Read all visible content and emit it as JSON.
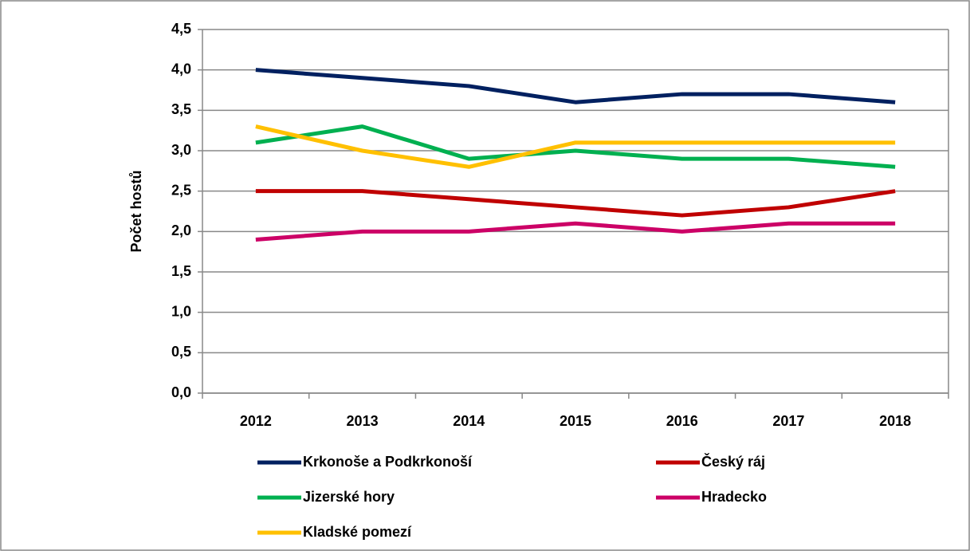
{
  "chart_data": {
    "type": "line",
    "y_label": "Počet hostů",
    "categories": [
      "2012",
      "2013",
      "2014",
      "2015",
      "2016",
      "2017",
      "2018"
    ],
    "series": [
      {
        "name": "Krkonoše a Podkrkonoší",
        "color": "#002060",
        "values": [
          4.0,
          3.9,
          3.8,
          3.6,
          3.7,
          3.7,
          3.6
        ]
      },
      {
        "name": "Český ráj",
        "color": "#c00000",
        "values": [
          2.5,
          2.5,
          2.4,
          2.3,
          2.2,
          2.3,
          2.5
        ]
      },
      {
        "name": "Jizerské hory",
        "color": "#00b050",
        "values": [
          3.1,
          3.3,
          2.9,
          3.0,
          2.9,
          2.9,
          2.8
        ]
      },
      {
        "name": "Hradecko",
        "color": "#cc0066",
        "values": [
          1.9,
          2.0,
          2.0,
          2.1,
          2.0,
          2.1,
          2.1
        ]
      },
      {
        "name": "Kladské pomezí",
        "color": "#ffc000",
        "values": [
          3.3,
          3.0,
          2.8,
          3.1,
          3.1,
          3.1,
          3.1
        ]
      }
    ],
    "ylim": [
      0,
      4.5
    ],
    "yticks": [
      {
        "value": 0,
        "label": "0,0"
      },
      {
        "value": 0.5,
        "label": "0,5"
      },
      {
        "value": 1,
        "label": "1,0"
      },
      {
        "value": 1.5,
        "label": "1,5"
      },
      {
        "value": 2,
        "label": "2,0"
      },
      {
        "value": 2.5,
        "label": "2,5"
      },
      {
        "value": 3,
        "label": "3,0"
      },
      {
        "value": 3.5,
        "label": "3,5"
      },
      {
        "value": 4,
        "label": "4,0"
      },
      {
        "value": 4.5,
        "label": "4,5"
      }
    ],
    "grid": true,
    "legend": "bottom"
  }
}
